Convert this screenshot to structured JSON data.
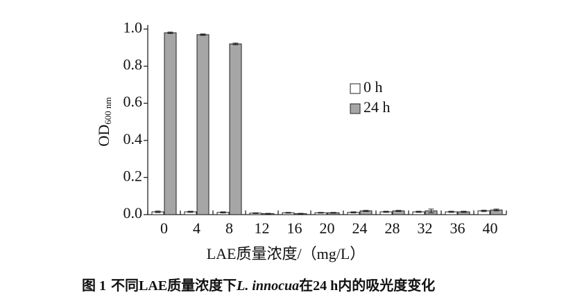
{
  "chart_data": {
    "type": "bar",
    "x_label": "LAE质量浓度/（mg/L）",
    "y_label": "OD",
    "y_label_sub": "600 nm",
    "categories": [
      "0",
      "4",
      "8",
      "12",
      "16",
      "20",
      "24",
      "28",
      "32",
      "36",
      "40"
    ],
    "series": [
      {
        "name": "0 h",
        "color": "#ffffff",
        "values": [
          0.015,
          0.015,
          0.012,
          0.008,
          0.01,
          0.01,
          0.012,
          0.015,
          0.015,
          0.015,
          0.02
        ],
        "errors": [
          0.004,
          0.003,
          0.003,
          0.002,
          0.002,
          0.002,
          0.003,
          0.003,
          0.003,
          0.003,
          0.004
        ]
      },
      {
        "name": "24 h",
        "color": "#a6a6a6",
        "values": [
          0.98,
          0.97,
          0.92,
          0.005,
          0.005,
          0.01,
          0.02,
          0.02,
          0.02,
          0.015,
          0.025
        ],
        "errors": [
          0.004,
          0.004,
          0.005,
          0.002,
          0.002,
          0.002,
          0.003,
          0.003,
          0.01,
          0.003,
          0.005
        ]
      }
    ],
    "ylim": [
      0,
      1.0
    ],
    "yticks": [
      {
        "value": 0,
        "label": "0.0"
      },
      0.2,
      0.4,
      0.6,
      0.8,
      {
        "value": 1.0,
        "label": "1.0"
      }
    ],
    "legend": "upper-right"
  },
  "caption": {
    "label": "图 1",
    "text_before": "不同LAE质量浓度下",
    "species": "L. innocua",
    "text_after": "在24 h内的吸光度变化"
  }
}
